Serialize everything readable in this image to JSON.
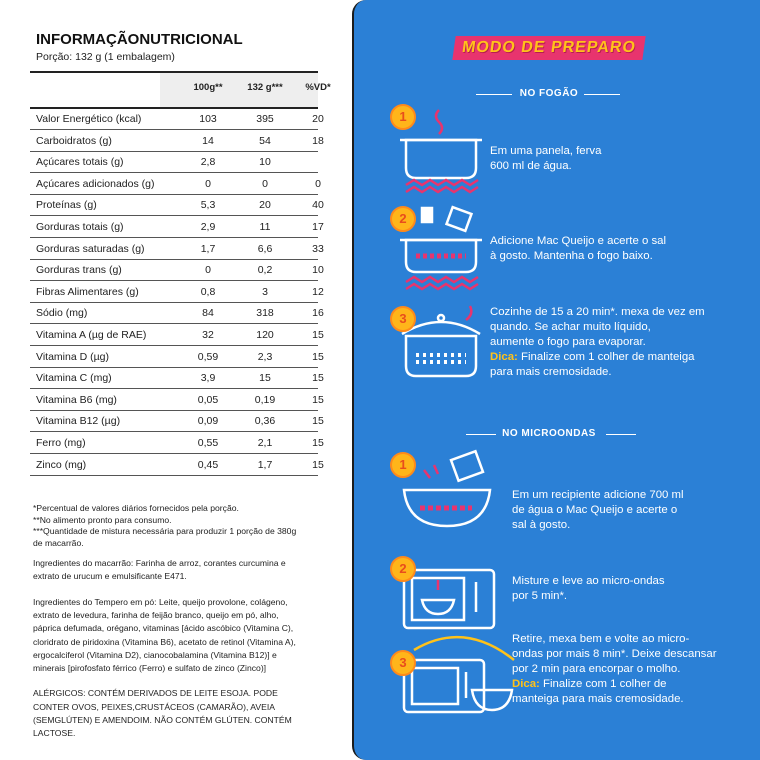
{
  "nutrition": {
    "title": "INFORMAÇÃONUTRICIONAL",
    "portion": "Porção: 132 g (1 embalagem)",
    "columns": [
      "100g**",
      "132 g***",
      "%VD*"
    ],
    "rows": [
      [
        "Valor Energético (kcal)",
        "103",
        "395",
        "20"
      ],
      [
        "Carboidratos (g)",
        "14",
        "54",
        "18"
      ],
      [
        "Açúcares totais (g)",
        "2,8",
        "10"
      ],
      [
        "Açúcares adicionados (g)",
        "0",
        "0",
        "0"
      ],
      [
        "Proteínas (g)",
        "5,3",
        "20",
        "40"
      ],
      [
        "Gorduras totais (g)",
        "2,9",
        "11",
        "17"
      ],
      [
        "Gorduras saturadas (g)",
        "1,7",
        "6,6",
        "33"
      ],
      [
        "Gorduras trans (g)",
        "0",
        "0,2",
        "10"
      ],
      [
        "Fibras Alimentares (g)",
        "0,8",
        "3",
        "12"
      ],
      [
        "Sódio (mg)",
        "84",
        "318",
        "16"
      ],
      [
        "Vitamina A (µg de RAE)",
        "32",
        "120",
        "15"
      ],
      [
        "Vitamina D (µg)",
        "0,59",
        "2,3",
        "15"
      ],
      [
        "Vitamina C (mg)",
        "3,9",
        "15",
        "15"
      ],
      [
        "Vitamina B6 (mg)",
        "0,05",
        "0,19",
        "15"
      ],
      [
        "Vitamina B12 (µg)",
        "0,09",
        "0,36",
        "15"
      ],
      [
        "Ferro (mg)",
        "0,55",
        "2,1",
        "15"
      ],
      [
        "Zinco (mg)",
        "0,45",
        "1,7",
        "15"
      ]
    ],
    "footnotes": [
      "*Percentual de valores diários fornecidos pela porção.",
      "**No alimento pronto para consumo.",
      "***Quantidade de mistura necessária para produzir 1 porção de 380g",
      "de macarrão."
    ],
    "paragraphs": [
      [
        "Ingredientes do macarrão:  Farinha de arroz, corantes curcumina e",
        "extrato de urucum e emulsificante E471."
      ],
      [
        "Ingredientes do Tempero em pó:  Leite, queijo provolone, colágeno,",
        "extrato de levedura, farinha de feijão branco, queijo em pó, alho,",
        "páprica defumada, orégano, vitaminas [ácido ascóbico (Vitamina C),",
        "cloridrato de piridoxina (Vitamina B6), acetato de retinol (Vitamina A),",
        "ergocalciferol (Vitamina D2), cianocobalamina (Vitamina B12)] e",
        "minerais [pirofosfato férrico (Ferro) e sulfato de zinco (Zinco)]"
      ],
      [
        "ALÉRGICOS: CONTÉM DERIVADOS DE LEITE ESOJA. PODE",
        "CONTER OVOS, PEIXES,CRUSTÁCEOS (CAMARÃO), AVEIA",
        "(SEMGLÚTEN) E AMENDOIM. NÃO CONTÉM GLÚTEN. CONTÉM",
        "LACTOSE."
      ]
    ]
  },
  "preparo": {
    "title": "MODO DE PREPARO",
    "sections": [
      {
        "title": "NO FOGÃO",
        "steps": [
          {
            "number": "1",
            "text": [
              "Em uma panela, ferva",
              "600 ml de água."
            ]
          },
          {
            "number": "2",
            "text": [
              "Adicione Mac Queijo e acerte o sal",
              "à gosto. Mantenha o fogo baixo."
            ]
          },
          {
            "number": "3",
            "text": [
              "Cozinhe de 15 a 20 min*. mexa de vez em",
              "quando. Se achar muito líquido,",
              "aumente o fogo para evaporar."
            ],
            "tip": {
              "label": "Dica:",
              "text": [
                "Finalize com 1 colher de manteiga",
                "para mais cremosidade."
              ]
            }
          }
        ]
      },
      {
        "title": "NO MICROONDAS",
        "steps": [
          {
            "number": "1",
            "text": [
              "Em um recipiente adicione 700 ml",
              "de água o Mac Queijo e acerte o",
              "sal à gosto."
            ]
          },
          {
            "number": "2",
            "text": [
              "Misture e leve ao micro-ondas",
              "por 5 min*."
            ]
          },
          {
            "number": "3",
            "text": [
              "Retire, mexa bem e volte ao micro-",
              "ondas por mais 8 min*. Deixe descansar",
              "por 2 min para encorpar o molho."
            ],
            "tip": {
              "label": "Dica:",
              "text": [
                "Finalize com 1 colher de",
                "manteiga para mais cremosidade."
              ]
            }
          }
        ]
      }
    ]
  }
}
